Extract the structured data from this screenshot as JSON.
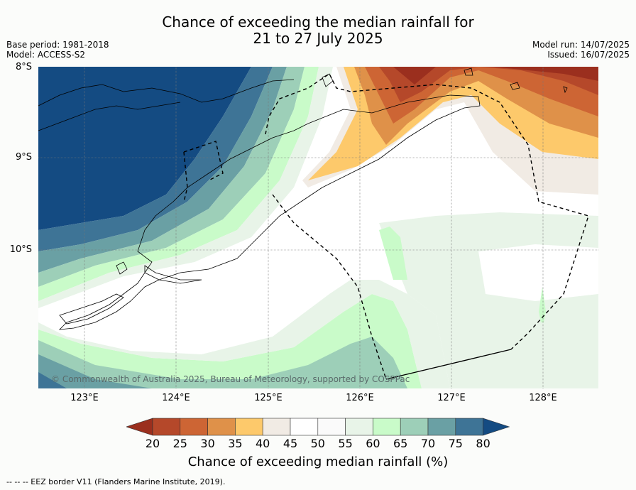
{
  "title_line1": "Chance of exceeding the median rainfall for",
  "title_line2": "21 to 27 July 2025",
  "base_period": "Base period: 1981-2018",
  "model": "Model: ACCESS-S2",
  "model_run": "Model run: 14/07/2025",
  "issued": "Issued: 16/07/2025",
  "lat_labels": [
    "8°S",
    "9°S",
    "10°S"
  ],
  "lon_labels": [
    "123°E",
    "124°E",
    "125°E",
    "126°E",
    "127°E",
    "128°E"
  ],
  "copyright": "© Commonwealth of Australia 2025, Bureau of Meteorology, supported by COSPPac",
  "colorbar": {
    "ticks": [
      "20",
      "25",
      "30",
      "35",
      "40",
      "45",
      "50",
      "55",
      "60",
      "65",
      "70",
      "75",
      "80"
    ],
    "colors": [
      "#9b2f1e",
      "#b5482a",
      "#cd6534",
      "#df9149",
      "#fdc96b",
      "#f1ebe4",
      "#ffffff",
      "#fafafa",
      "#e8f4e8",
      "#c9fbc9",
      "#9dcfb8",
      "#6aa0a4",
      "#3e7496",
      "#144b82"
    ],
    "label": "Chance of exceeding median rainfall (%)"
  },
  "footer": "--  --  -- EEZ border V11 (Flanders Marine Institute, 2019)."
}
